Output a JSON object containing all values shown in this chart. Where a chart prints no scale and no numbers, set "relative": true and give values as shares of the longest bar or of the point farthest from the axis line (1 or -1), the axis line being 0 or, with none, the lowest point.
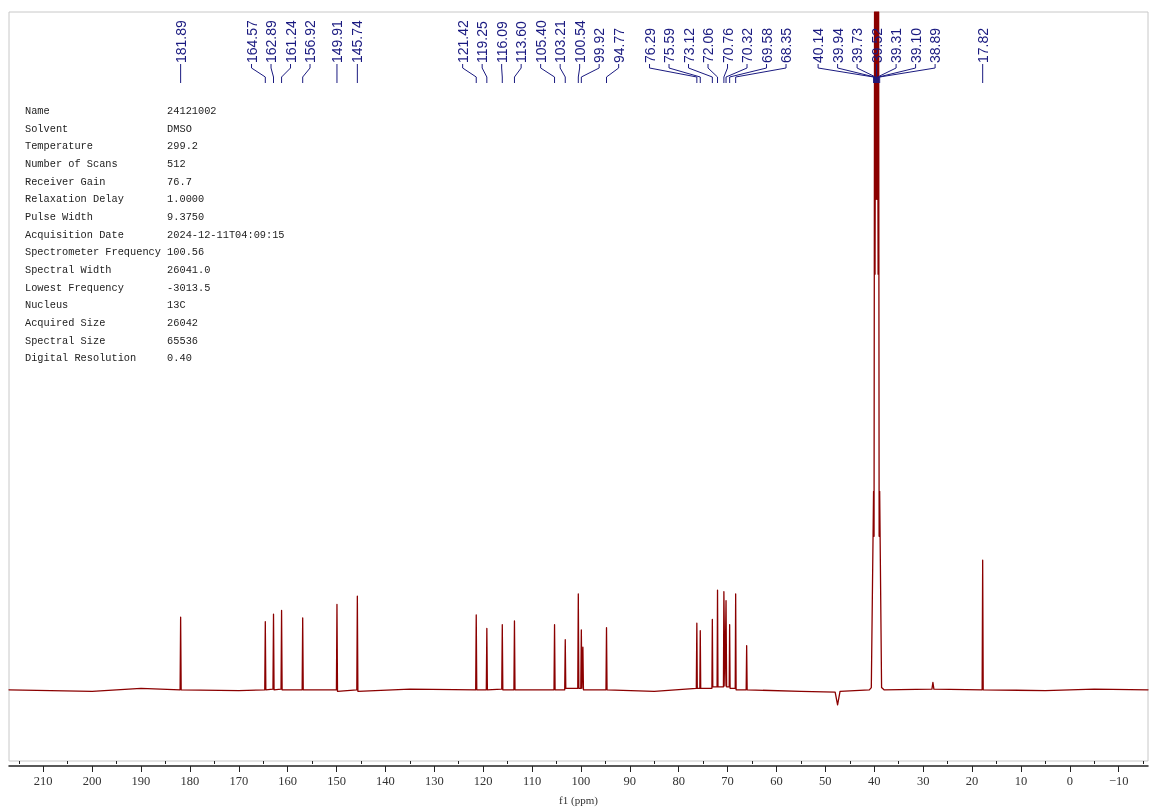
{
  "chart_data": {
    "type": "line",
    "xlabel": "f1 (ppm)",
    "relative": true,
    "color": "#8b0000",
    "marker": "none",
    "line_style": "solid",
    "x": [
      217,
      200,
      190,
      182.0,
      181.89,
      181.78,
      170,
      164.68,
      164.57,
      164.46,
      163.0,
      162.89,
      162.78,
      161.35,
      161.24,
      161.13,
      157.03,
      156.92,
      156.81,
      150.02,
      149.91,
      149.8,
      145.85,
      145.74,
      145.63,
      135,
      121.53,
      121.42,
      121.31,
      119.36,
      119.25,
      119.14,
      116.2,
      116.09,
      115.98,
      113.71,
      113.6,
      113.49,
      105.51,
      105.4,
      105.29,
      103.32,
      103.21,
      103.1,
      100.65,
      100.54,
      100.43,
      100.03,
      99.92,
      99.81,
      99.71,
      99.6,
      99.49,
      94.88,
      94.77,
      94.66,
      85,
      76.4,
      76.29,
      76.2,
      75.68,
      75.59,
      75.5,
      73.21,
      73.12,
      73.03,
      72.15,
      72.06,
      71.97,
      70.85,
      70.76,
      70.54,
      70.32,
      70.2,
      69.67,
      69.58,
      69.49,
      68.44,
      68.35,
      68.26,
      66.2,
      66.1,
      66.0,
      55,
      48,
      47.5,
      47.0,
      41,
      40.6,
      40.14,
      40.04,
      39.94,
      39.84,
      39.73,
      39.63,
      39.52,
      39.42,
      39.31,
      39.21,
      39.1,
      39.0,
      38.89,
      38.5,
      38,
      28.2,
      28,
      27.8,
      17.93,
      17.82,
      17.71,
      5,
      -5,
      -16
    ],
    "values": [
      0.095,
      0.093,
      0.097,
      0.095,
      0.192,
      0.095,
      0.094,
      0.095,
      0.186,
      0.095,
      0.096,
      0.196,
      0.095,
      0.096,
      0.201,
      0.095,
      0.095,
      0.191,
      0.095,
      0.095,
      0.209,
      0.093,
      0.095,
      0.22,
      0.093,
      0.096,
      0.095,
      0.195,
      0.095,
      0.095,
      0.177,
      0.095,
      0.096,
      0.182,
      0.095,
      0.095,
      0.187,
      0.095,
      0.095,
      0.182,
      0.095,
      0.095,
      0.162,
      0.097,
      0.097,
      0.223,
      0.097,
      0.097,
      0.175,
      0.097,
      0.097,
      0.152,
      0.095,
      0.095,
      0.178,
      0.095,
      0.093,
      0.097,
      0.184,
      0.097,
      0.097,
      0.174,
      0.097,
      0.097,
      0.189,
      0.099,
      0.099,
      0.228,
      0.099,
      0.099,
      0.226,
      0.1,
      0.214,
      0.099,
      0.099,
      0.182,
      0.097,
      0.097,
      0.223,
      0.095,
      0.095,
      0.154,
      0.095,
      0.093,
      0.092,
      0.075,
      0.093,
      0.095,
      0.098,
      0.36,
      0.3,
      1,
      0.65,
      1,
      0.75,
      1,
      0.75,
      1,
      0.65,
      1,
      0.3,
      0.36,
      0.098,
      0.095,
      0.096,
      0.105,
      0.096,
      0.095,
      0.268,
      0.095,
      0.094,
      0.096,
      0.095
    ],
    "xlim": [
      217,
      -16
    ],
    "xticks": [
      {
        "value": 215,
        "label": null
      },
      210,
      {
        "value": 205,
        "label": null
      },
      200,
      {
        "value": 195,
        "label": null
      },
      190,
      {
        "value": 185,
        "label": null
      },
      180,
      {
        "value": 175,
        "label": null
      },
      170,
      {
        "value": 165,
        "label": null
      },
      160,
      {
        "value": 155,
        "label": null
      },
      150,
      {
        "value": 145,
        "label": null
      },
      140,
      {
        "value": 135,
        "label": null
      },
      130,
      {
        "value": 125,
        "label": null
      },
      120,
      {
        "value": 115,
        "label": null
      },
      110,
      {
        "value": 105,
        "label": null
      },
      100,
      {
        "value": 95,
        "label": null
      },
      90,
      {
        "value": 85,
        "label": null
      },
      80,
      {
        "value": 75,
        "label": null
      },
      70,
      {
        "value": 65,
        "label": null
      },
      60,
      {
        "value": 55,
        "label": null
      },
      50,
      {
        "value": 45,
        "label": null
      },
      40,
      {
        "value": 35,
        "label": null
      },
      30,
      {
        "value": 25,
        "label": null
      },
      20,
      {
        "value": 15,
        "label": null
      },
      10,
      {
        "value": 5,
        "label": null
      },
      0,
      {
        "value": -5,
        "label": null
      },
      {
        "value": -10,
        "label": "−10"
      },
      {
        "value": -15,
        "label": null
      }
    ],
    "annotations": [
      {
        "text": "181.89",
        "x": 181.89
      },
      {
        "text": "164.57",
        "x": 164.57
      },
      {
        "text": "162.89",
        "x": 162.89
      },
      {
        "text": "161.24",
        "x": 161.24
      },
      {
        "text": "156.92",
        "x": 156.92
      },
      {
        "text": "149.91",
        "x": 149.91
      },
      {
        "text": "145.74",
        "x": 145.74
      },
      {
        "text": "121.42",
        "x": 121.42
      },
      {
        "text": "119.25",
        "x": 119.25
      },
      {
        "text": "116.09",
        "x": 116.09
      },
      {
        "text": "113.60",
        "x": 113.6
      },
      {
        "text": "105.40",
        "x": 105.4
      },
      {
        "text": "103.21",
        "x": 103.21
      },
      {
        "text": "100.54",
        "x": 100.54
      },
      {
        "text": "99.92",
        "x": 99.92
      },
      {
        "text": "94.77",
        "x": 94.77
      },
      {
        "text": "76.29",
        "x": 76.29
      },
      {
        "text": "75.59",
        "x": 75.59
      },
      {
        "text": "73.12",
        "x": 73.12
      },
      {
        "text": "72.06",
        "x": 72.06
      },
      {
        "text": "70.76",
        "x": 70.76
      },
      {
        "text": "70.32",
        "x": 70.32
      },
      {
        "text": "69.58",
        "x": 69.58
      },
      {
        "text": "68.35",
        "x": 68.35
      },
      {
        "text": "40.14",
        "x": 40.14
      },
      {
        "text": "39.94",
        "x": 39.94
      },
      {
        "text": "39.73",
        "x": 39.73
      },
      {
        "text": "39.52",
        "x": 39.52
      },
      {
        "text": "39.31",
        "x": 39.31
      },
      {
        "text": "39.10",
        "x": 39.1
      },
      {
        "text": "38.89",
        "x": 38.89
      },
      {
        "text": "17.82",
        "x": 17.82
      },
      "Name 24121002",
      "Solvent DMSO",
      "Temperature 299.2",
      "Number of Scans 512",
      "Receiver Gain 76.7",
      "Relaxation Delay 1.0000",
      "Pulse Width 9.3750",
      "Acquisition Date 2024-12-11T04:09:15",
      "Spectrometer Frequency 100.56",
      "Spectral Width 26041.0",
      "Lowest Frequency -3013.5",
      "Nucleus 13C",
      "Acquired Size 26042",
      "Spectral Size 65536",
      "Digital Resolution 0.40"
    ]
  }
}
